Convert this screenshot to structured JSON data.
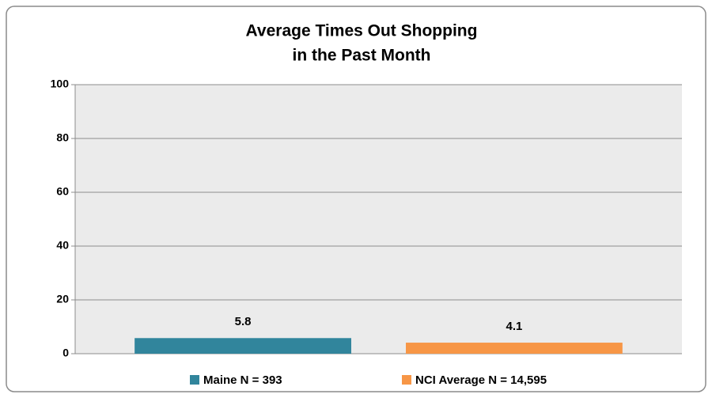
{
  "chart_data": {
    "type": "bar",
    "title": [
      "Average Times Out Shopping",
      "in the Past Month"
    ],
    "categories": [
      null
    ],
    "series": [
      {
        "name": "Maine N = 393",
        "color": "#31859c",
        "values": [
          5.8
        ]
      },
      {
        "name": "NCI Average N = 14,595",
        "color": "#f79646",
        "values": [
          4.1
        ]
      }
    ],
    "ylim": [
      0,
      100
    ],
    "yticks": [
      0,
      20,
      40,
      60,
      80,
      100
    ],
    "grid": true,
    "data_labels": true,
    "legend": "bottom"
  }
}
